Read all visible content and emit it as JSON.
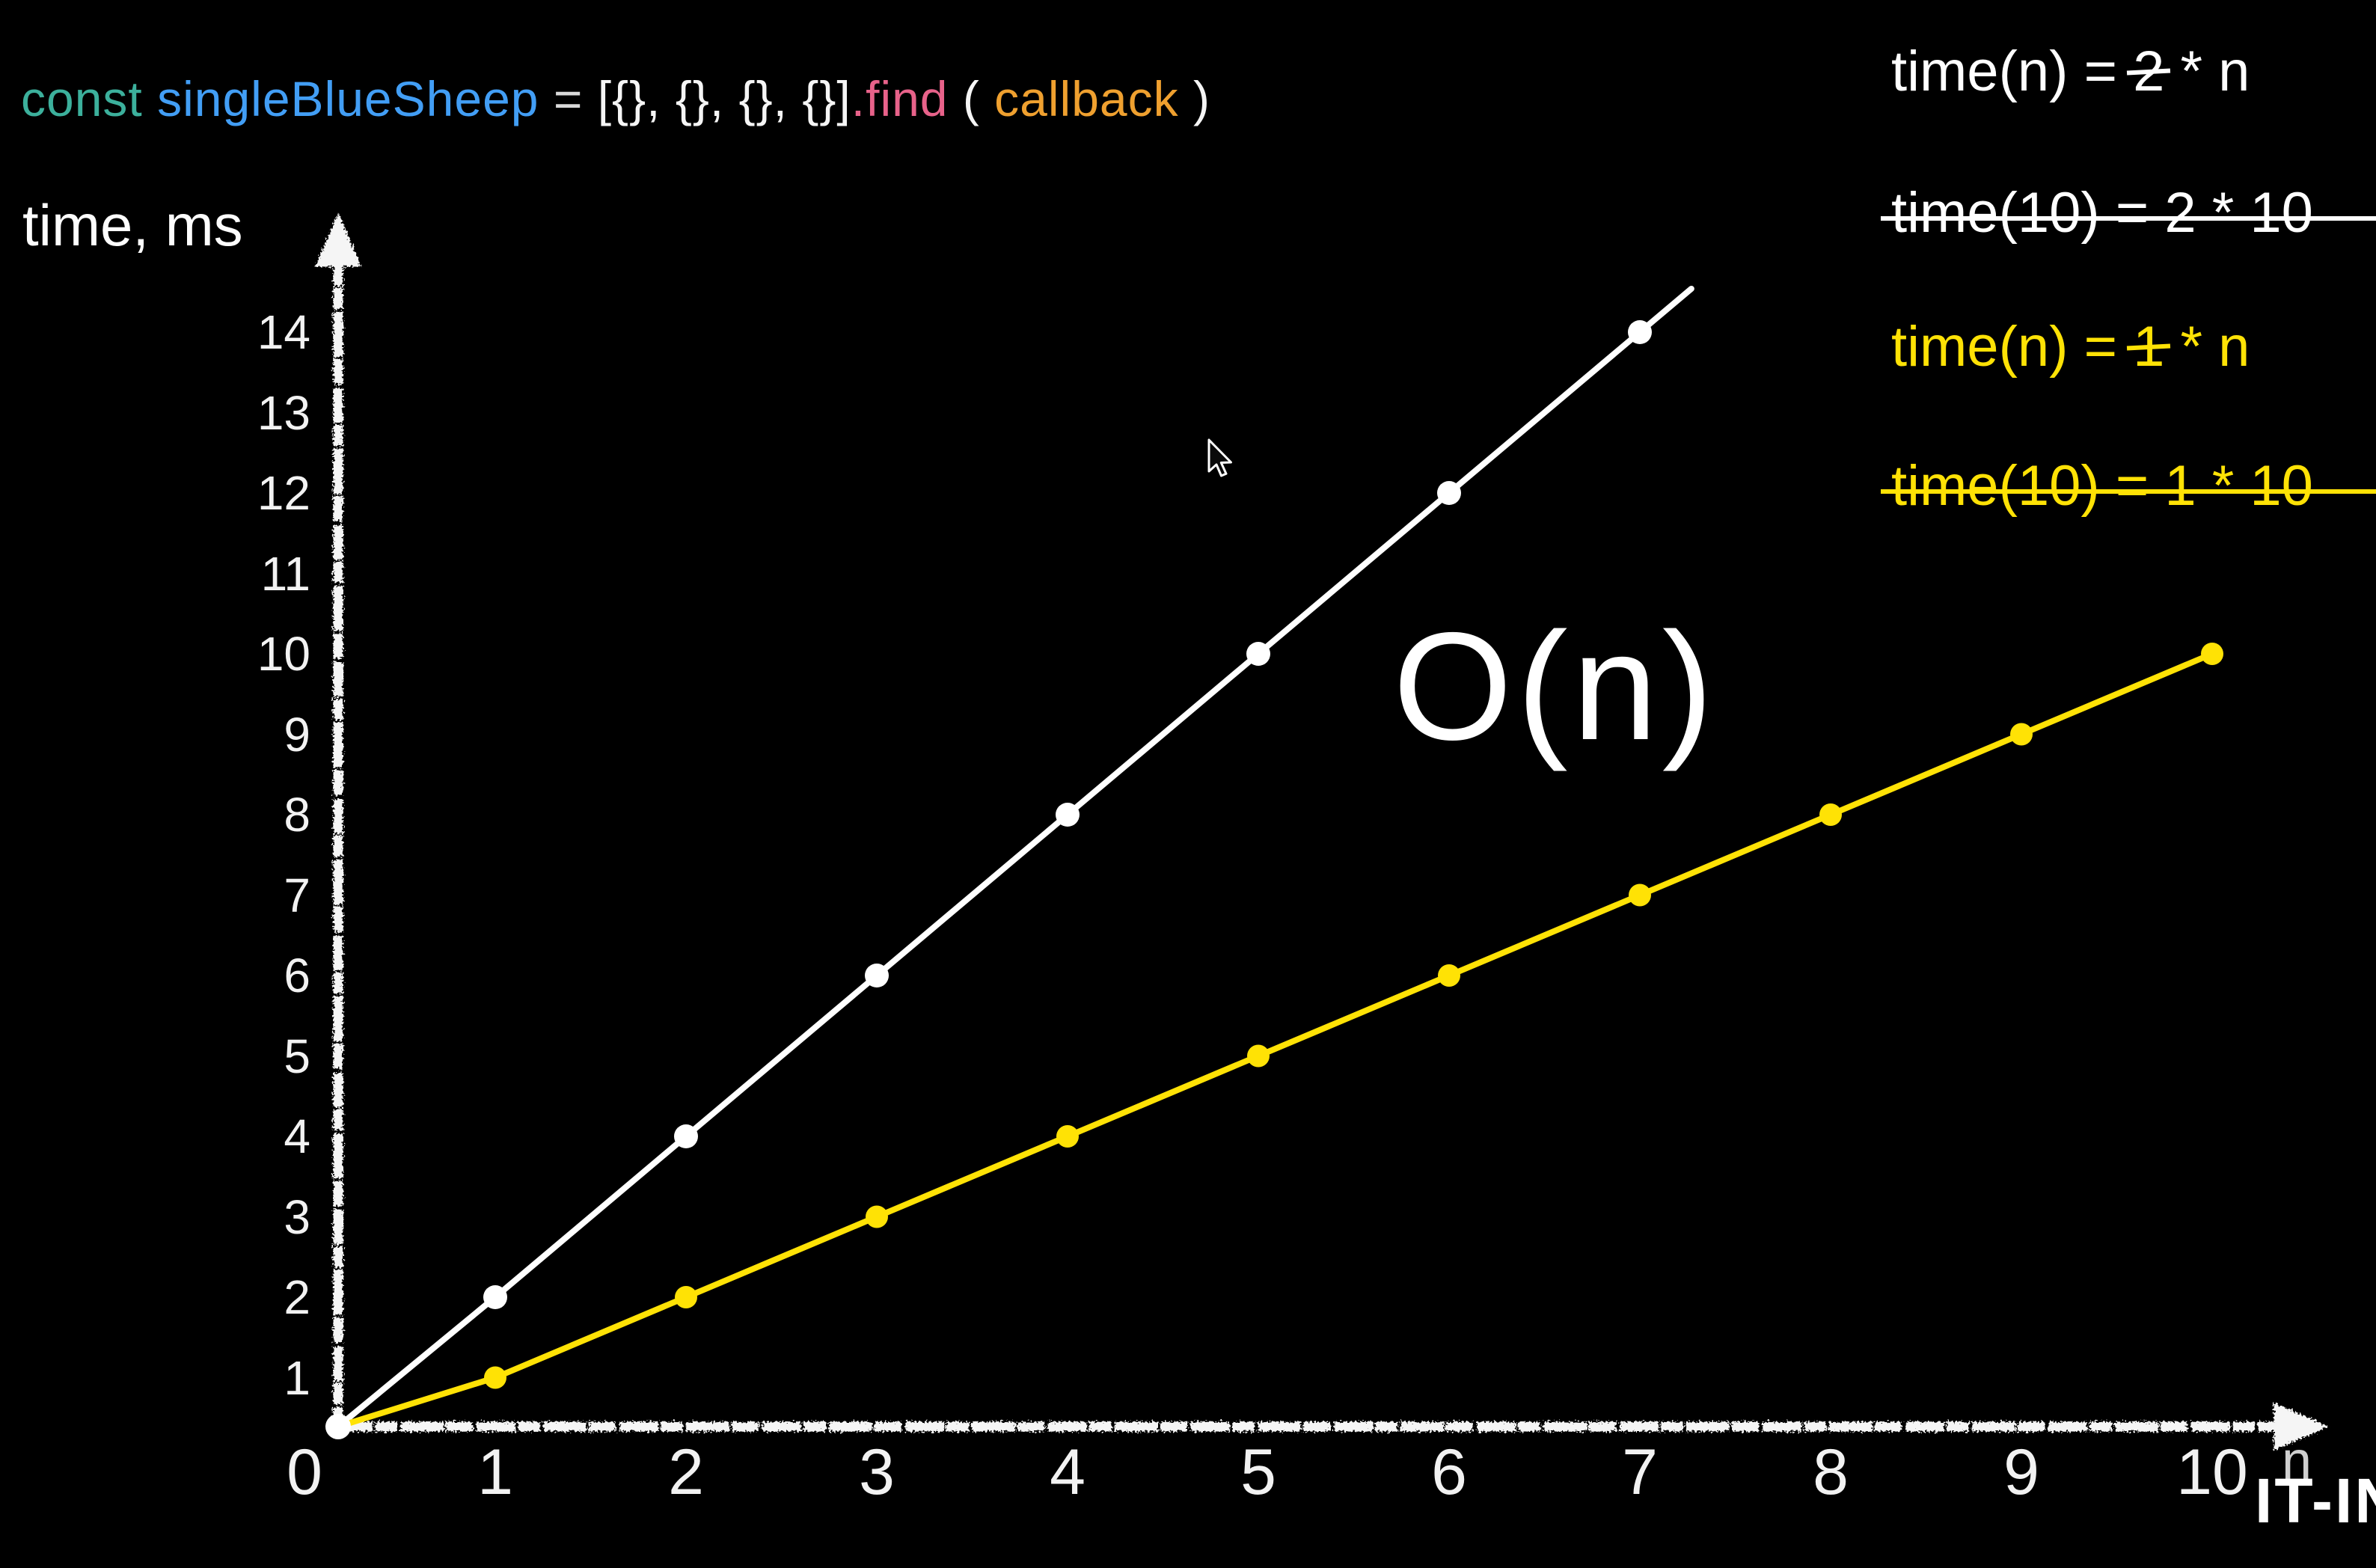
{
  "slide": {
    "background_color": "#000000",
    "code_line": {
      "tokens": [
        {
          "name": "keyword-const",
          "text": "const ",
          "color": "#3cb09c"
        },
        {
          "name": "variable-name",
          "text": "singleBlueSheep ",
          "color": "#429ef5"
        },
        {
          "name": "operator-equals",
          "text": "= ",
          "color": "#d9d9d9"
        },
        {
          "name": "array-literal",
          "text": "[{}, {}, {}, {}]",
          "color": "#f5f5f5"
        },
        {
          "name": "method-find",
          "text": ".find",
          "color": "#e8628a"
        },
        {
          "name": "paren-open",
          "text": " ( ",
          "color": "#f5f5f5"
        },
        {
          "name": "argument-callback",
          "text": "callback",
          "color": "#efa02f"
        },
        {
          "name": "paren-close",
          "text": " )",
          "color": "#f5f5f5"
        }
      ]
    },
    "equations": [
      {
        "name": "white-general",
        "color": "#ffffff",
        "strike_full_line": false,
        "parts": [
          {
            "text": "time(n) = ",
            "struck": false
          },
          {
            "text": "2",
            "struck": true
          },
          {
            "text": " * n",
            "struck": false
          }
        ]
      },
      {
        "name": "white-evaluated",
        "color": "#ffffff",
        "strike_full_line": true,
        "parts": [
          {
            "text": "time(10) = 2 * 10",
            "struck": false
          }
        ]
      },
      {
        "name": "yellow-general",
        "color": "#ffe205",
        "strike_full_line": false,
        "parts": [
          {
            "text": "time(n) = ",
            "struck": false
          },
          {
            "text": "1",
            "struck": true
          },
          {
            "text": " * n",
            "struck": false
          }
        ]
      },
      {
        "name": "yellow-evaluated",
        "color": "#ffe205",
        "strike_full_line": true,
        "parts": [
          {
            "text": "time(10) = 1 * 10",
            "struck": false
          }
        ]
      }
    ],
    "watermark": "IT-IN",
    "cursor": "arrow-pointer"
  },
  "chart_data": {
    "type": "line",
    "title": "O(n)",
    "xlabel": "n",
    "ylabel": "time, ms",
    "xlim": [
      0,
      10.5
    ],
    "ylim": [
      0,
      14.5
    ],
    "grid": false,
    "legend_position": "none",
    "x_ticks": [
      0,
      1,
      2,
      3,
      4,
      5,
      6,
      7,
      8,
      9,
      10
    ],
    "y_ticks": [
      1,
      2,
      3,
      4,
      5,
      6,
      7,
      8,
      9,
      10,
      11,
      12,
      13,
      14
    ],
    "accent_colors": {
      "white_series": "#ffffff",
      "yellow_series": "#ffe205"
    },
    "series": [
      {
        "name": "time(n) = 2 * n",
        "color": "#ffffff",
        "x": [
          0,
          1,
          2,
          3,
          4,
          5,
          6,
          7
        ],
        "y": [
          0,
          2,
          4,
          6,
          8,
          10,
          12,
          14
        ]
      },
      {
        "name": "time(n) = 1 * n",
        "color": "#ffe205",
        "x": [
          0,
          1,
          2,
          3,
          4,
          5,
          6,
          7,
          8,
          9,
          10
        ],
        "y": [
          0,
          1,
          2,
          3,
          4,
          5,
          6,
          7,
          8,
          9,
          10
        ]
      }
    ]
  }
}
